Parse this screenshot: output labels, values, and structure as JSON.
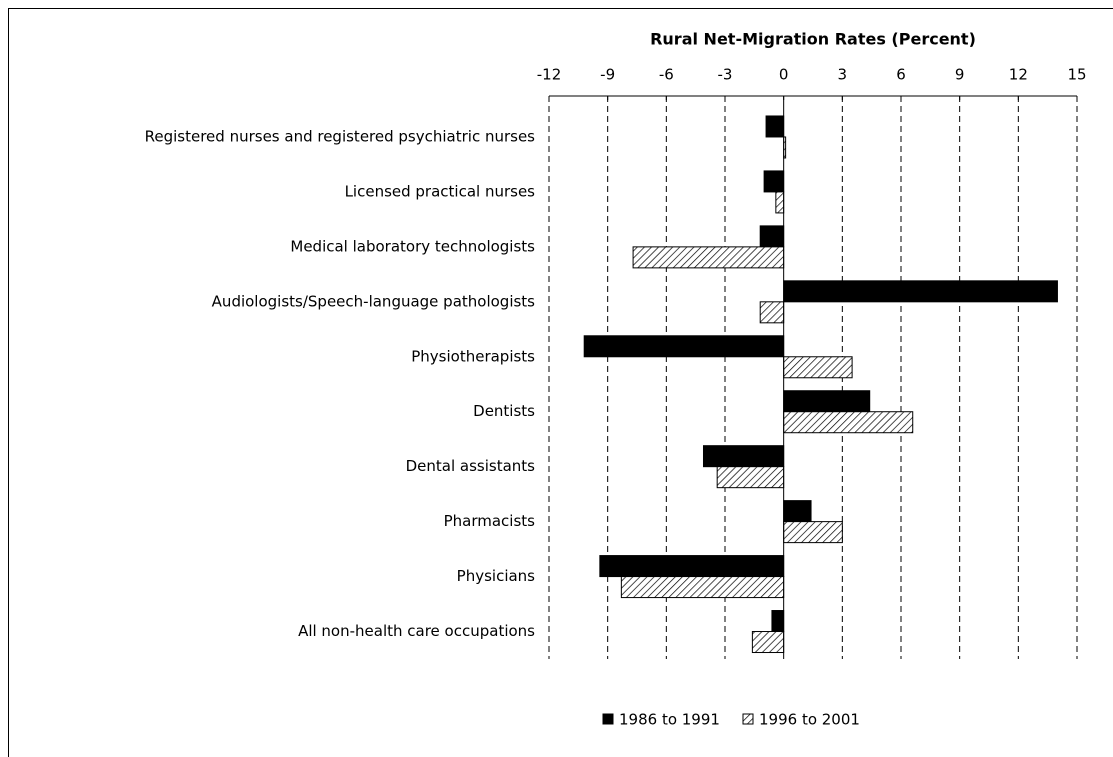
{
  "chart_data": {
    "type": "hbar",
    "x_label": "Rural Net-Migration Rates (Percent)",
    "categories": [
      "Registered nurses and registered psychiatric nurses",
      "Licensed practical nurses",
      "Medical laboratory technologists",
      "Audiologists/Speech-language pathologists",
      "Physiotherapists",
      "Dentists",
      "Dental assistants",
      "Pharmacists",
      "Physicians",
      "All non-health care occupations"
    ],
    "series": [
      {
        "name": "1986 to 1991",
        "color": "#000000",
        "hatch": false,
        "values": [
          -0.9,
          -1.0,
          -1.2,
          14.0,
          -10.2,
          4.4,
          -4.1,
          1.4,
          -9.4,
          -0.6
        ]
      },
      {
        "name": "1996 to 2001",
        "color": "#000000",
        "hatch": true,
        "values": [
          0.1,
          -0.4,
          -7.7,
          -1.2,
          3.5,
          6.6,
          -3.4,
          3.0,
          -8.3,
          -1.6
        ]
      }
    ],
    "xlim": [
      -12,
      15
    ],
    "xticks": [
      -12,
      -9,
      -6,
      -3,
      0,
      3,
      6,
      9,
      12,
      15
    ],
    "grid": true,
    "legend": "bottom"
  }
}
